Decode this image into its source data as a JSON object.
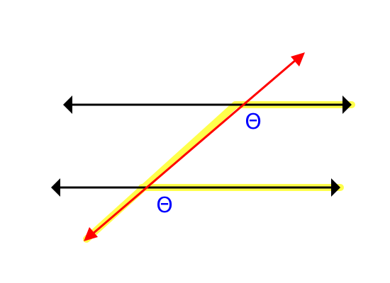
{
  "diagram": {
    "angles": [
      {
        "label": "Θ"
      },
      {
        "label": "Θ"
      }
    ],
    "colors": {
      "parallel_lines": "#000000",
      "transversal": "#ff0000",
      "highlight": "#ffff00",
      "angle_label": "#0000ff",
      "background": "#ffffff"
    }
  }
}
